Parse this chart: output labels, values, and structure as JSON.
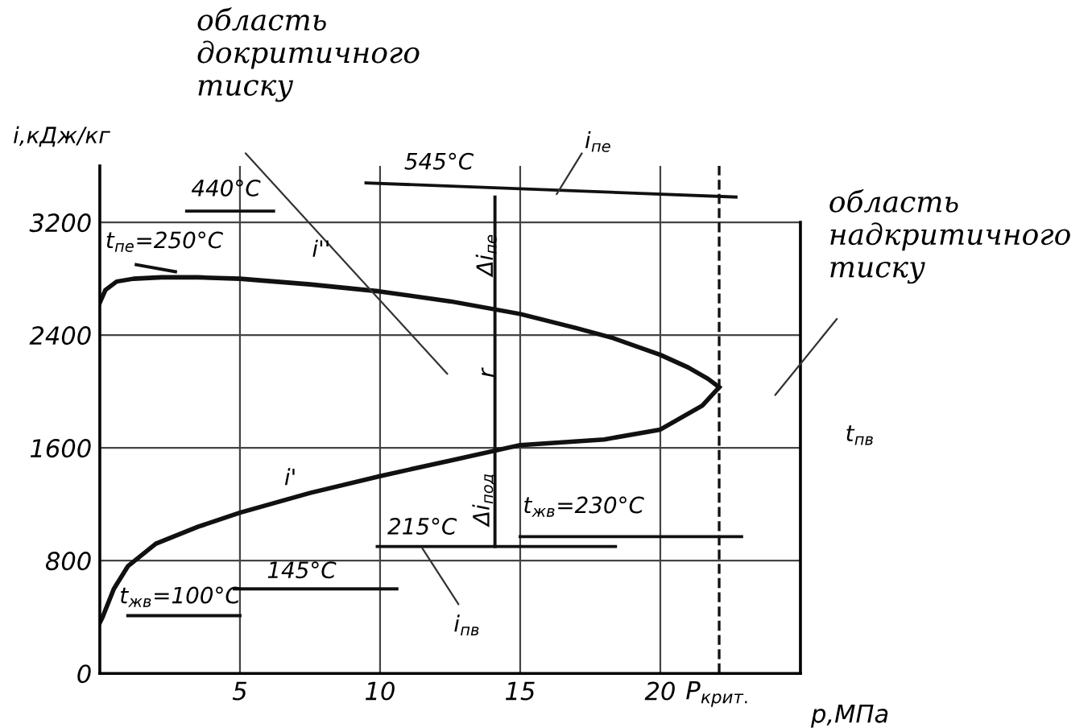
{
  "chart_data": {
    "type": "line",
    "xlabel": "p,МПа",
    "ylabel": "i,кДж/кг",
    "xlim": [
      0,
      25
    ],
    "ylim": [
      0,
      3600
    ],
    "xticks": [
      5,
      10,
      15,
      20,
      {
        "value": 22.1,
        "label": "P$_{крит.}$"
      }
    ],
    "yticks": [
      0,
      800,
      1600,
      2400,
      3200
    ],
    "grid": true,
    "marker": "none",
    "line_style": "solid",
    "series": [
      {
        "color": "#111111",
        "x": [
          0,
          0.2,
          0.6,
          1.2,
          2.2,
          3.5,
          5,
          7.5,
          10,
          12.5,
          15,
          17,
          18.3,
          20,
          21,
          21.7,
          22.1
        ],
        "values": [
          2630,
          2720,
          2780,
          2800,
          2810,
          2810,
          2800,
          2760,
          2710,
          2640,
          2550,
          2450,
          2380,
          2260,
          2170,
          2090,
          2030
        ]
      },
      {
        "color": "#111111",
        "x": [
          22.1,
          21.5,
          20,
          18,
          15,
          12.5,
          10,
          7.5,
          5,
          3.5,
          2,
          1,
          0.5,
          0.3,
          0.1,
          0
        ],
        "values": [
          2030,
          1900,
          1730,
          1660,
          1620,
          1510,
          1400,
          1280,
          1140,
          1040,
          920,
          760,
          600,
          500,
          400,
          360
        ]
      },
      {
        "color": "#111111",
        "x": [
          3.1,
          6.2
        ],
        "values": [
          3280,
          3280
        ]
      },
      {
        "color": "#111111",
        "x": [
          9.5,
          22.7
        ],
        "values": [
          3480,
          3380
        ]
      },
      {
        "color": "#111111",
        "x": [
          1.3,
          2.7
        ],
        "values": [
          2900,
          2850
        ]
      },
      {
        "color": "#111111",
        "x": [
          1.0,
          5.0
        ],
        "values": [
          410,
          410
        ]
      },
      {
        "color": "#111111",
        "x": [
          4.8,
          10.6
        ],
        "values": [
          600,
          600
        ]
      },
      {
        "color": "#111111",
        "x": [
          9.9,
          18.4
        ],
        "values": [
          900,
          900
        ]
      },
      {
        "color": "#111111",
        "x": [
          15.0,
          22.9
        ],
        "values": [
          970,
          970
        ]
      },
      {
        "color": "#111111",
        "x": [
          14.1,
          14.1
        ],
        "values": [
          900,
          3380
        ]
      }
    ],
    "ref_lines": [
      {
        "axis": "x",
        "value": 22.1,
        "label": null,
        "color": "#111111",
        "line_style": "dashed"
      }
    ],
    "annotations": [
      "область\nдокритичного\nтиску",
      "область\nнадкритичного\nтиску",
      "t$_{пв}$",
      "440°C",
      "545°C",
      "i$_{пе}$",
      "t$_{пе}$=250°C",
      "i''",
      "Δi$_{пе}$",
      "r",
      "Δi$_{под}$",
      "i'",
      "215°C",
      "t$_{жв}$=230°C",
      "145°C",
      "t$_{жв}$=100°C",
      "i$_{пв}$"
    ]
  }
}
